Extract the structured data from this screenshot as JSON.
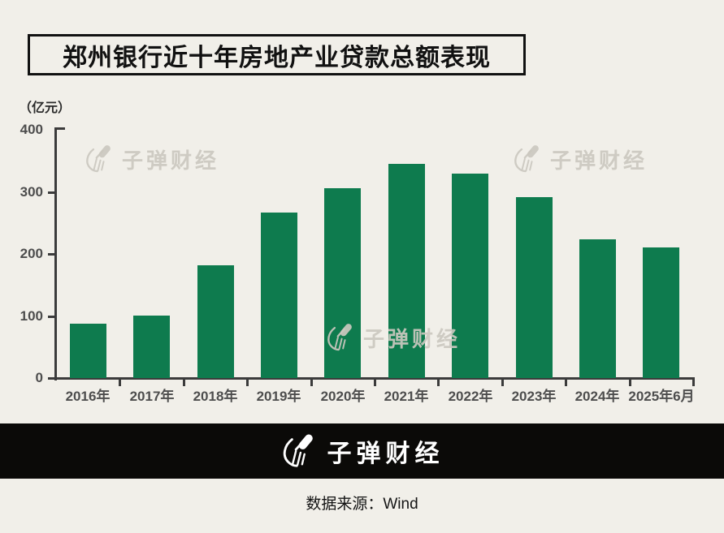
{
  "title": "郑州银行近十年房地产业贷款总额表现",
  "unit_label": "（亿元）",
  "watermark": {
    "text": "子弹财经",
    "icon": "bullet-brand-icon"
  },
  "footer": {
    "brand": "子弹财经",
    "source": "数据来源：Wind"
  },
  "colors": {
    "background": "#f1efe9",
    "bar": "#0e7b4e",
    "axis": "#3b3b3b",
    "tick_label": "#4d4d4d",
    "footer_bg": "#0b0a08",
    "watermark": "#cbc8bf"
  },
  "chart_data": {
    "type": "bar",
    "title": "郑州银行近十年房地产业贷款总额表现",
    "ylabel": "（亿元）",
    "categories": [
      "2016年",
      "2017年",
      "2018年",
      "2019年",
      "2020年",
      "2021年",
      "2022年",
      "2023年",
      "2024年",
      "2025年6月"
    ],
    "values": [
      87,
      100,
      182,
      267,
      306,
      345,
      329,
      292,
      223,
      211
    ],
    "ylim": [
      0,
      400
    ],
    "yticks": [
      0,
      100,
      200,
      300,
      400
    ],
    "grid": false,
    "legend": null,
    "bar_color": "#0e7b4e"
  }
}
